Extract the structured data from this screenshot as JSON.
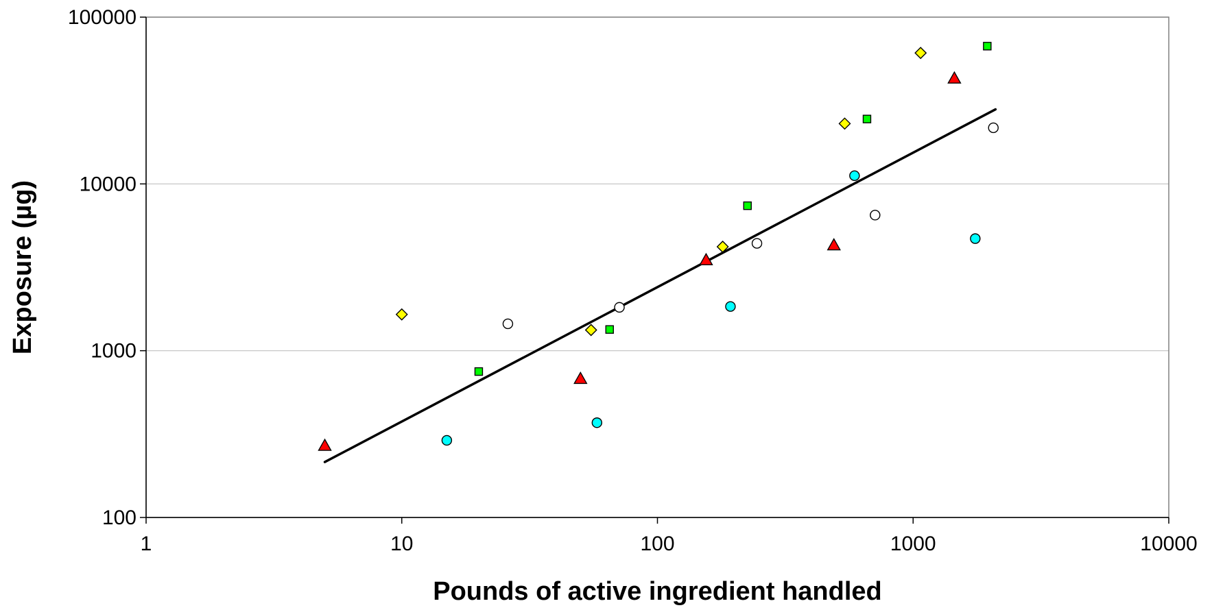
{
  "chart_data": {
    "type": "scatter",
    "title": "",
    "xlabel": "Pounds of active ingredient handled",
    "ylabel": "Exposure (µg)",
    "x_scale": "log",
    "y_scale": "log",
    "xlim": [
      1,
      10000
    ],
    "ylim": [
      100,
      100000
    ],
    "x_ticks": [
      "1",
      "10",
      "100",
      "1000",
      "10000"
    ],
    "y_ticks": [
      "100",
      "1000",
      "10000",
      "100000"
    ],
    "grid": "horizontal major gridlines",
    "legend": "none",
    "series": [
      {
        "marker": "triangle",
        "color": "#ff0000",
        "points": [
          [
            5,
            270
          ],
          [
            50,
            680
          ],
          [
            155,
            3500
          ],
          [
            490,
            4300
          ],
          [
            1450,
            43000
          ]
        ]
      },
      {
        "marker": "diamond",
        "color": "#ffff00",
        "points": [
          [
            10,
            1650
          ],
          [
            55,
            1330
          ],
          [
            180,
            4200
          ],
          [
            540,
            23000
          ],
          [
            1070,
            61000
          ]
        ]
      },
      {
        "marker": "square",
        "color": "#00ff00",
        "points": [
          [
            20,
            750
          ],
          [
            65,
            1340
          ],
          [
            225,
            7400
          ],
          [
            660,
            24500
          ],
          [
            1950,
            67000
          ]
        ]
      },
      {
        "marker": "circle",
        "color": "#ffffff",
        "points": [
          [
            26,
            1450
          ],
          [
            71,
            1820
          ],
          [
            245,
            4400
          ],
          [
            710,
            6500
          ],
          [
            2060,
            21700
          ]
        ]
      },
      {
        "marker": "circle",
        "color": "#00ffff",
        "points": [
          [
            15,
            290
          ],
          [
            58,
            370
          ],
          [
            193,
            1840
          ],
          [
            590,
            11200
          ],
          [
            1750,
            4700
          ]
        ]
      }
    ],
    "trendline": {
      "type": "power",
      "color": "#000000",
      "x": [
        5,
        2100
      ],
      "y": [
        215,
        28000
      ]
    }
  }
}
